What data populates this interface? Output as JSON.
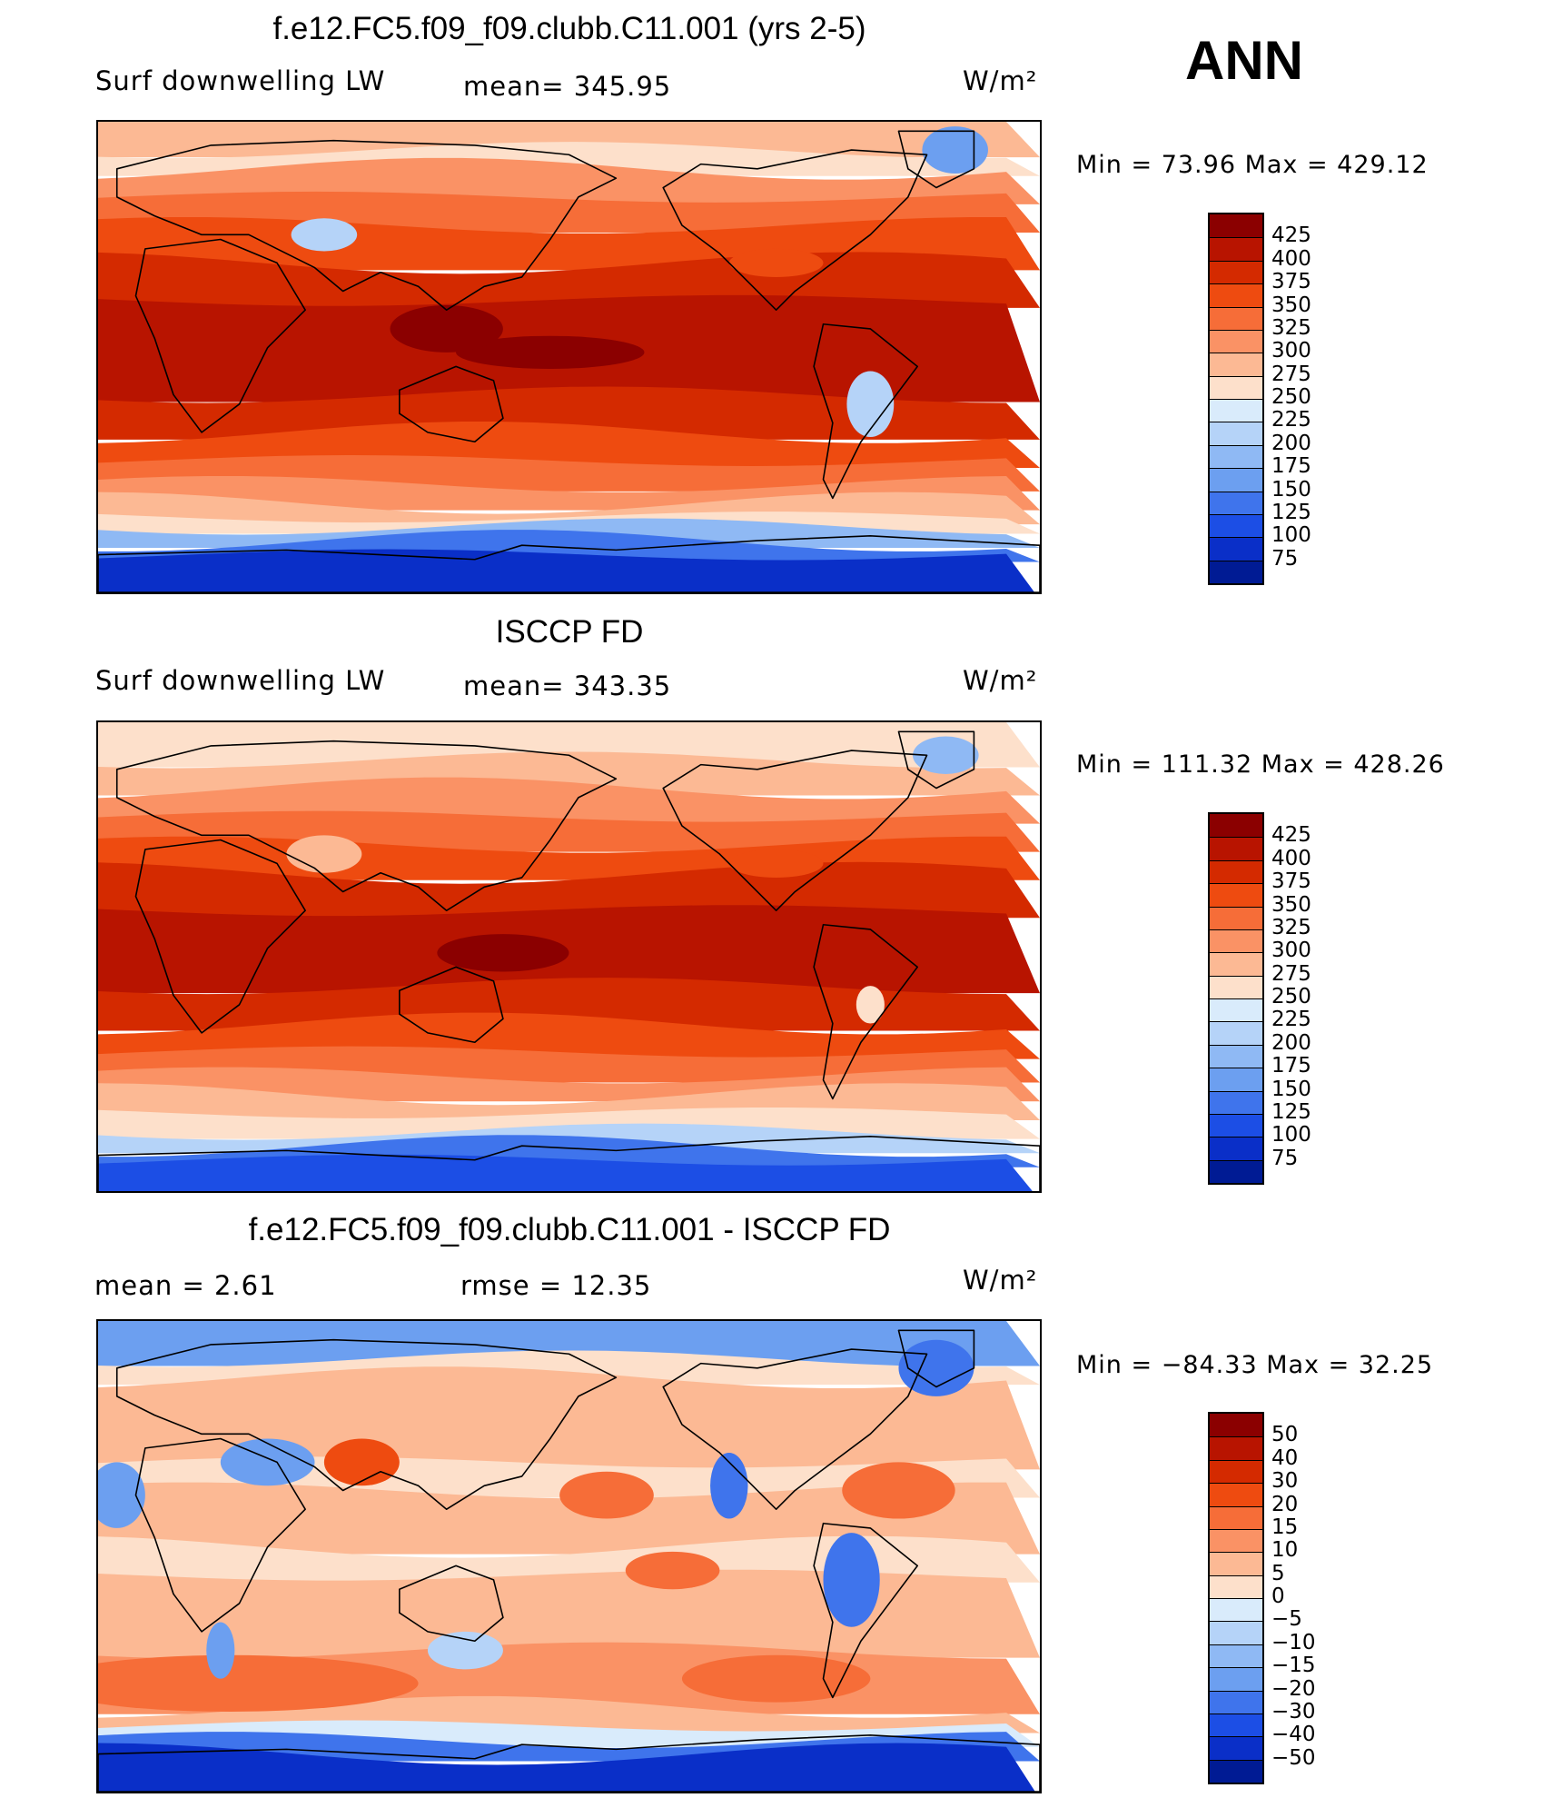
{
  "season": "ANN",
  "panels": [
    {
      "title": "f.e12.FC5.f09_f09.clubb.C11.001 (yrs 2-5)",
      "left_label": "Surf downwelling LW",
      "mid_label": "mean= 345.95",
      "units": "W/m²",
      "minmax": "Min =   73.96 Max = 429.12",
      "variant": "model"
    },
    {
      "title": "ISCCP FD",
      "left_label": "Surf downwelling LW",
      "mid_label": "mean= 343.35",
      "units": "W/m²",
      "minmax": "Min = 111.32 Max = 428.26",
      "variant": "obs"
    },
    {
      "title": "f.e12.FC5.f09_f09.clubb.C11.001 - ISCCP FD",
      "left_label": "mean =    2.61",
      "mid_label": "rmse =    12.35",
      "units": "W/m²",
      "minmax": "Min = −84.33 Max =   32.25",
      "variant": "diff"
    }
  ],
  "colorbars": [
    {
      "labels": [
        "425",
        "400",
        "375",
        "350",
        "325",
        "300",
        "275",
        "250",
        "225",
        "200",
        "175",
        "150",
        "125",
        "100",
        "75"
      ],
      "colors": [
        "#8b0000",
        "#b81400",
        "#d42a00",
        "#ee4b10",
        "#f66d38",
        "#fa9265",
        "#fcb994",
        "#fde0cb",
        "#d9ebfb",
        "#b5d3f8",
        "#8fb9f4",
        "#6c9ff0",
        "#3f74ec",
        "#1c4ee5",
        "#0a2fc8",
        "#001b94"
      ]
    },
    {
      "labels": [
        "425",
        "400",
        "375",
        "350",
        "325",
        "300",
        "275",
        "250",
        "225",
        "200",
        "175",
        "150",
        "125",
        "100",
        "75"
      ],
      "colors": [
        "#8b0000",
        "#b81400",
        "#d42a00",
        "#ee4b10",
        "#f66d38",
        "#fa9265",
        "#fcb994",
        "#fde0cb",
        "#d9ebfb",
        "#b5d3f8",
        "#8fb9f4",
        "#6c9ff0",
        "#3f74ec",
        "#1c4ee5",
        "#0a2fc8",
        "#001b94"
      ]
    },
    {
      "labels": [
        "50",
        "40",
        "30",
        "20",
        "15",
        "10",
        "5",
        "0",
        "−5",
        "−10",
        "−15",
        "−20",
        "−30",
        "−40",
        "−50"
      ],
      "colors": [
        "#8b0000",
        "#b81400",
        "#d42a00",
        "#ee4b10",
        "#f66d38",
        "#fa9265",
        "#fcb994",
        "#fde0cb",
        "#d9ebfb",
        "#b5d3f8",
        "#8fb9f4",
        "#6c9ff0",
        "#3f74ec",
        "#1c4ee5",
        "#0a2fc8",
        "#001b94"
      ]
    }
  ]
}
